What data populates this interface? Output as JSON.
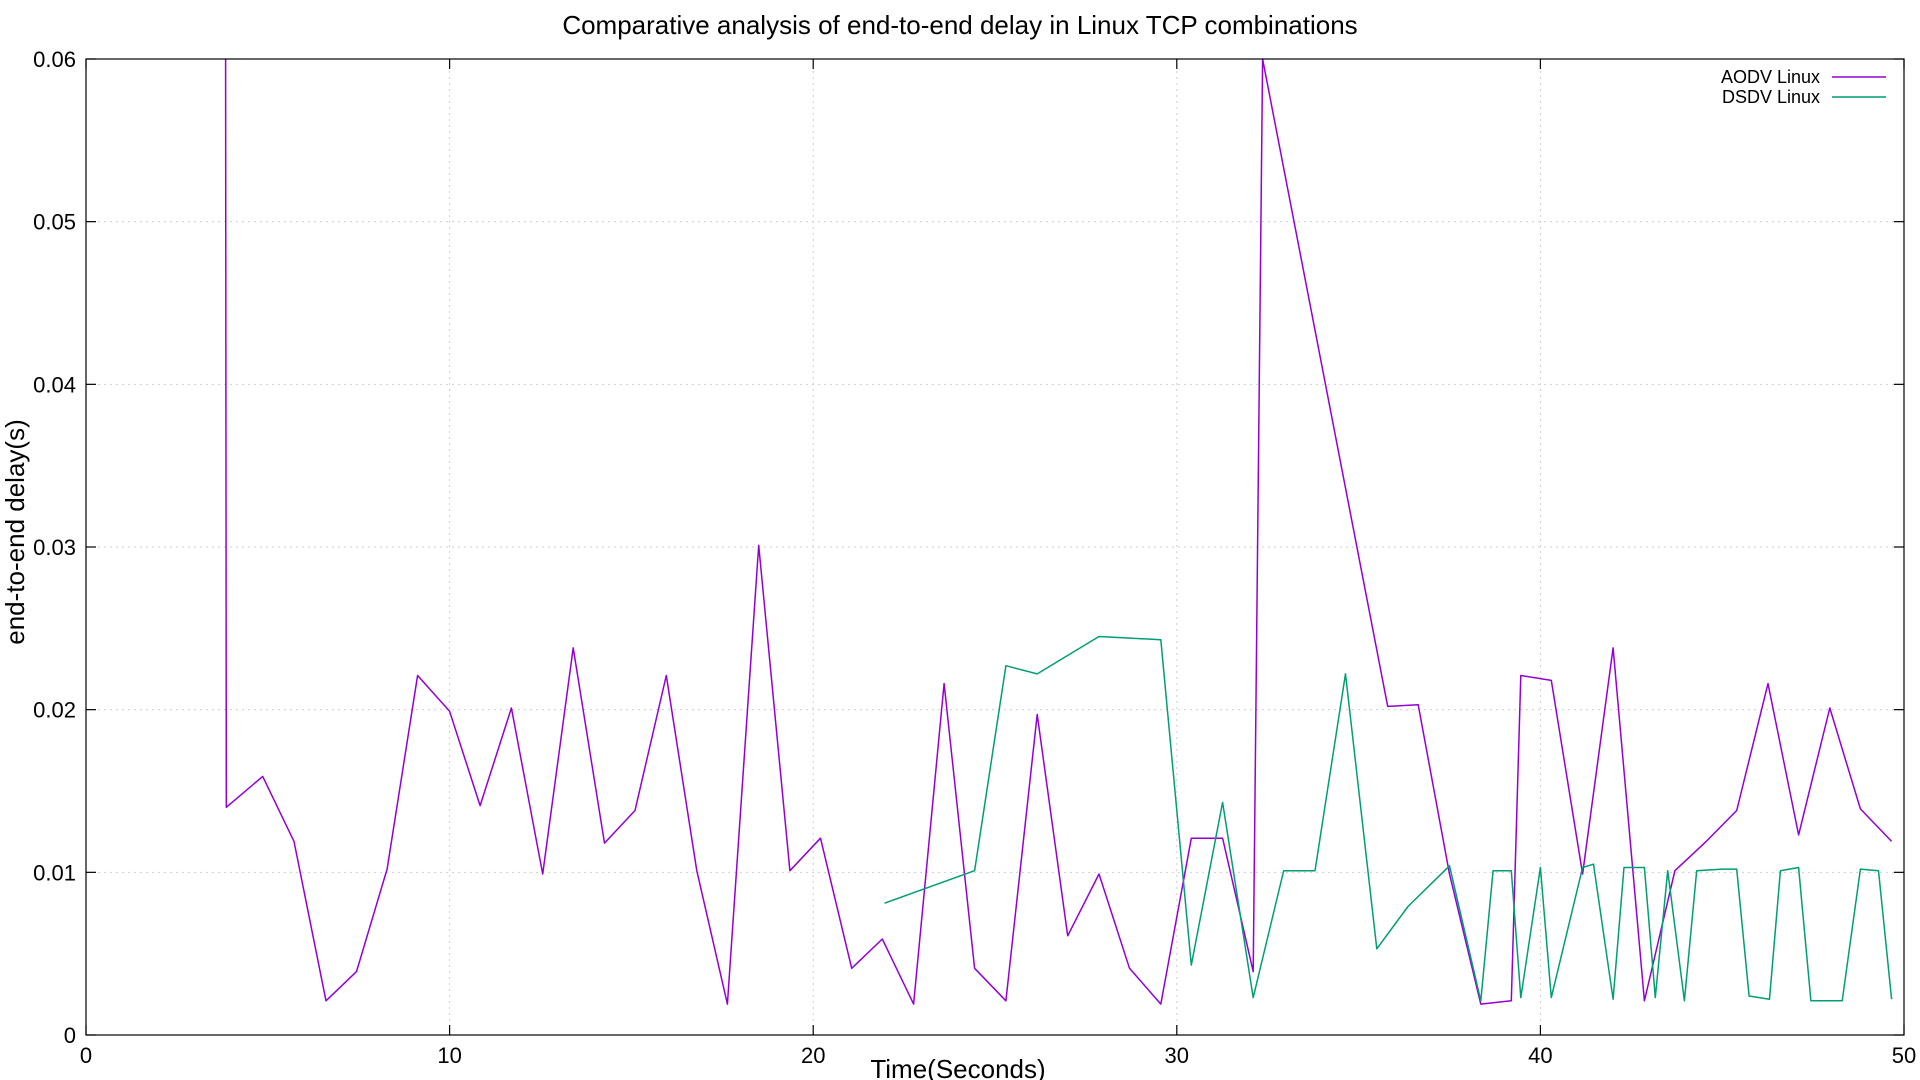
{
  "chart_data": {
    "type": "line",
    "title": "Comparative analysis of end-to-end delay in Linux TCP combinations",
    "xlabel": "Time(Seconds)",
    "ylabel": "end-to-end delay(s)",
    "xlim": [
      0,
      50
    ],
    "ylim": [
      0,
      0.06
    ],
    "x_ticks": [
      0,
      10,
      20,
      30,
      40,
      50
    ],
    "x_tick_labels": [
      "0",
      "10",
      "20",
      "30",
      "40",
      "50"
    ],
    "y_ticks": [
      0,
      0.01,
      0.02,
      0.03,
      0.04,
      0.05,
      0.06
    ],
    "y_tick_labels": [
      "0",
      "0.01",
      "0.02",
      "0.03",
      "0.04",
      "0.05",
      "0.06"
    ],
    "grid": true,
    "legend_position": "top-right",
    "series": [
      {
        "name": "AODV Linux",
        "color": "#9400d3",
        "points": [
          [
            3.84,
            0.06
          ],
          [
            3.86,
            0.014
          ],
          [
            4.86,
            0.0159
          ],
          [
            5.72,
            0.0119
          ],
          [
            6.6,
            0.0021
          ],
          [
            7.44,
            0.0039
          ],
          [
            8.28,
            0.0102
          ],
          [
            9.12,
            0.0221
          ],
          [
            10.0,
            0.0199
          ],
          [
            10.84,
            0.0141
          ],
          [
            11.7,
            0.0201
          ],
          [
            12.56,
            0.0099
          ],
          [
            13.4,
            0.0238
          ],
          [
            14.26,
            0.0118
          ],
          [
            15.1,
            0.0138
          ],
          [
            15.96,
            0.0221
          ],
          [
            16.8,
            0.0101
          ],
          [
            17.64,
            0.0019
          ],
          [
            18.5,
            0.0301
          ],
          [
            19.36,
            0.0101
          ],
          [
            20.2,
            0.0121
          ],
          [
            21.06,
            0.0041
          ],
          [
            21.9,
            0.0059
          ],
          [
            22.76,
            0.0019
          ],
          [
            23.6,
            0.0216
          ],
          [
            24.44,
            0.0041
          ],
          [
            25.3,
            0.0021
          ],
          [
            26.16,
            0.0197
          ],
          [
            27.0,
            0.0061
          ],
          [
            27.86,
            0.0099
          ],
          [
            28.7,
            0.0041
          ],
          [
            29.56,
            0.0019
          ],
          [
            30.4,
            0.0121
          ],
          [
            31.26,
            0.0121
          ],
          [
            32.1,
            0.0039
          ],
          [
            32.36,
            0.06
          ],
          [
            35.8,
            0.0202
          ],
          [
            36.64,
            0.0203
          ],
          [
            37.5,
            0.0099
          ],
          [
            38.36,
            0.0019
          ],
          [
            39.2,
            0.0021
          ],
          [
            39.46,
            0.0221
          ],
          [
            40.3,
            0.0218
          ],
          [
            41.16,
            0.0099
          ],
          [
            42.0,
            0.0238
          ],
          [
            42.86,
            0.0021
          ],
          [
            43.7,
            0.0101
          ],
          [
            44.56,
            0.0119
          ],
          [
            45.4,
            0.0138
          ],
          [
            46.26,
            0.0216
          ],
          [
            47.1,
            0.0123
          ],
          [
            47.96,
            0.0201
          ],
          [
            48.8,
            0.0139
          ],
          [
            49.66,
            0.0119
          ]
        ]
      },
      {
        "name": "DSDV Linux",
        "color": "#009e73",
        "points": [
          [
            21.96,
            0.0081
          ],
          [
            24.44,
            0.0101
          ],
          [
            25.3,
            0.0227
          ],
          [
            26.16,
            0.0222
          ],
          [
            27.86,
            0.0245
          ],
          [
            29.56,
            0.0243
          ],
          [
            30.4,
            0.0043
          ],
          [
            31.26,
            0.0143
          ],
          [
            32.1,
            0.0023
          ],
          [
            32.94,
            0.0101
          ],
          [
            33.8,
            0.0101
          ],
          [
            34.64,
            0.0222
          ],
          [
            35.5,
            0.0053
          ],
          [
            36.36,
            0.0079
          ],
          [
            37.5,
            0.0104
          ],
          [
            38.36,
            0.0021
          ],
          [
            38.7,
            0.0101
          ],
          [
            39.2,
            0.0101
          ],
          [
            39.46,
            0.0023
          ],
          [
            40.0,
            0.0103
          ],
          [
            40.3,
            0.0023
          ],
          [
            41.16,
            0.0103
          ],
          [
            41.46,
            0.0105
          ],
          [
            42.0,
            0.0022
          ],
          [
            42.3,
            0.0103
          ],
          [
            42.86,
            0.0103
          ],
          [
            43.16,
            0.0023
          ],
          [
            43.5,
            0.0101
          ],
          [
            43.96,
            0.0021
          ],
          [
            44.3,
            0.0101
          ],
          [
            45.0,
            0.0102
          ],
          [
            45.4,
            0.0102
          ],
          [
            45.74,
            0.0024
          ],
          [
            46.3,
            0.0022
          ],
          [
            46.6,
            0.0101
          ],
          [
            47.1,
            0.0103
          ],
          [
            47.44,
            0.0021
          ],
          [
            48.3,
            0.0021
          ],
          [
            48.8,
            0.0102
          ],
          [
            49.3,
            0.0101
          ],
          [
            49.66,
            0.0022
          ]
        ]
      }
    ]
  }
}
